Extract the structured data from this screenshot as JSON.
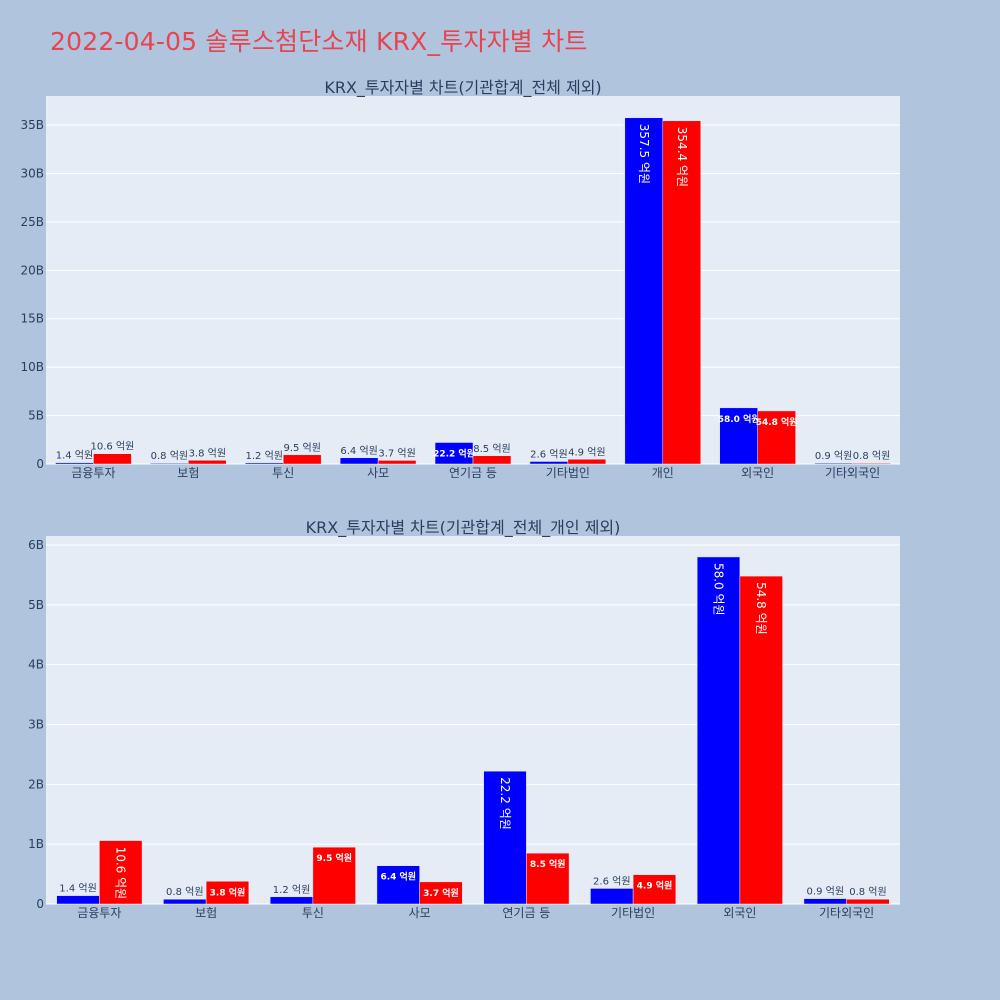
{
  "page": {
    "title": "2022-04-05 솔루스첨단소재 KRX_투자자별 차트"
  },
  "colors": {
    "background": "#b0c4de",
    "plot_bg": "#e5ecf6",
    "buy": "#0000ff",
    "sell": "#ff0000",
    "title": "#e8444f",
    "text": "#2a3f5f"
  },
  "chart_data": [
    {
      "type": "bar",
      "title": "KRX_투자자별 차트(기관합계_전체 제외)",
      "categories": [
        "금융투자",
        "보험",
        "투신",
        "사모",
        "연기금 등",
        "기타법인",
        "개인",
        "외국인",
        "기타외국인"
      ],
      "series": [
        {
          "color": "#0000ff",
          "values": [
            0.14,
            0.08,
            0.12,
            0.64,
            2.22,
            0.26,
            35.75,
            5.8,
            0.09
          ],
          "labels": [
            "1.4 억원",
            "0.8 억원",
            "1.2 억원",
            "6.4 억원",
            "22.2 억원",
            "2.6 억원",
            "357.5 억원",
            "58.0 억원",
            "0.9 억원"
          ]
        },
        {
          "color": "#ff0000",
          "values": [
            1.06,
            0.38,
            0.95,
            0.37,
            0.85,
            0.49,
            35.44,
            5.48,
            0.08
          ],
          "labels": [
            "10.6 억원",
            "3.8 억원",
            "9.5 억원",
            "3.7 억원",
            "8.5 억원",
            "4.9 억원",
            "354.4 억원",
            "54.8 억원",
            "0.8 억원"
          ]
        }
      ],
      "ylim": [
        0,
        38
      ],
      "yticks": [
        0,
        5,
        10,
        15,
        20,
        25,
        30,
        35
      ],
      "ytick_labels": [
        "0",
        "5B",
        "10B",
        "15B",
        "20B",
        "25B",
        "30B",
        "35B"
      ],
      "grid": true
    },
    {
      "type": "bar",
      "title": "KRX_투자자별 차트(기관합계_전체_개인 제외)",
      "categories": [
        "금융투자",
        "보험",
        "투신",
        "사모",
        "연기금 등",
        "기타법인",
        "외국인",
        "기타외국인"
      ],
      "series": [
        {
          "color": "#0000ff",
          "values": [
            0.14,
            0.08,
            0.12,
            0.64,
            2.22,
            0.26,
            5.8,
            0.09
          ],
          "labels": [
            "1.4 억원",
            "0.8 억원",
            "1.2 억원",
            "6.4 억원",
            "22.2 억원",
            "2.6 억원",
            "58.0 억원",
            "0.9 억원"
          ]
        },
        {
          "color": "#ff0000",
          "values": [
            1.06,
            0.38,
            0.95,
            0.37,
            0.85,
            0.49,
            5.48,
            0.08
          ],
          "labels": [
            "10.6 억원",
            "3.8 억원",
            "9.5 억원",
            "3.7 억원",
            "8.5 억원",
            "4.9 억원",
            "54.8 억원",
            "0.8 억원"
          ]
        }
      ],
      "ylim": [
        0,
        6.15
      ],
      "yticks": [
        0,
        1,
        2,
        3,
        4,
        5,
        6
      ],
      "ytick_labels": [
        "0",
        "1B",
        "2B",
        "3B",
        "4B",
        "5B",
        "6B"
      ],
      "grid": true
    }
  ]
}
